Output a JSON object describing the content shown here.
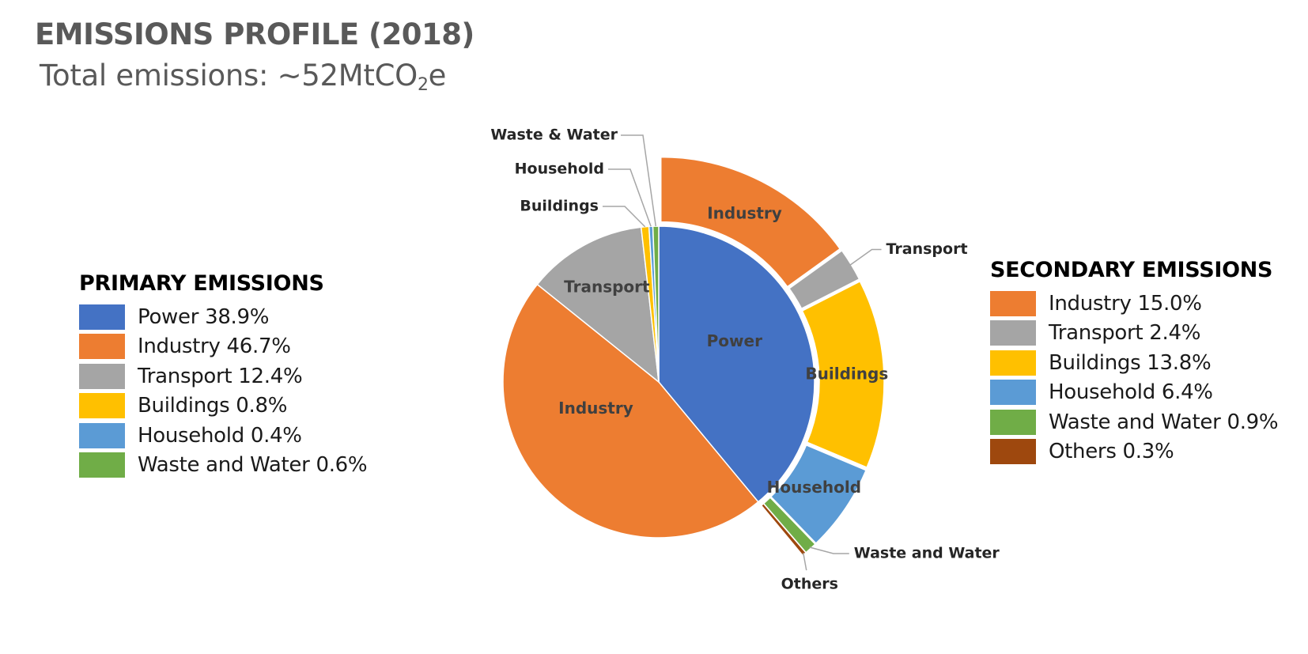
{
  "page": {
    "title": "EMISSIONS PROFILE (2018)",
    "subtitle_main": "Total emissions: ~52MtCO",
    "subtitle_sub": "2",
    "subtitle_end": "e"
  },
  "chart_data": [
    {
      "type": "pie",
      "title": "PRIMARY EMISSIONS",
      "categories": [
        "Power",
        "Industry",
        "Transport",
        "Buildings",
        "Household",
        "Waste and Water"
      ],
      "values": [
        38.9,
        46.7,
        12.4,
        0.8,
        0.4,
        0.6
      ],
      "unit": "%",
      "colors": [
        "#4472C4",
        "#ED7D31",
        "#A5A5A5",
        "#FFC000",
        "#5B9BD5",
        "#70AD47"
      ],
      "legend_labels": [
        "Power 38.9%",
        "Industry 46.7%",
        "Transport 12.4%",
        "Buildings 0.8%",
        "Household 0.4%",
        "Waste and Water 0.6%"
      ],
      "slice_labels": [
        "Power",
        "Industry",
        "Transport",
        "Buildings",
        "Household",
        "Waste & Water"
      ],
      "legend_position": "left"
    },
    {
      "type": "pie",
      "title": "SECONDARY EMISSIONS",
      "note": "outer exploded ring split out of the Power slice",
      "categories": [
        "Industry",
        "Transport",
        "Buildings",
        "Household",
        "Waste and Water",
        "Others"
      ],
      "values": [
        15.0,
        2.4,
        13.8,
        6.4,
        0.9,
        0.3
      ],
      "unit": "%",
      "colors": [
        "#ED7D31",
        "#A5A5A5",
        "#FFC000",
        "#5B9BD5",
        "#70AD47",
        "#9E480E"
      ],
      "legend_labels": [
        "Industry 15.0%",
        "Transport 2.4%",
        "Buildings 13.8%",
        "Household 6.4%",
        "Waste and Water 0.9%",
        "Others 0.3%"
      ],
      "slice_labels": [
        "Industry",
        "Transport",
        "Buildings",
        "Household",
        "Waste and Water",
        "Others"
      ],
      "legend_position": "right"
    }
  ]
}
